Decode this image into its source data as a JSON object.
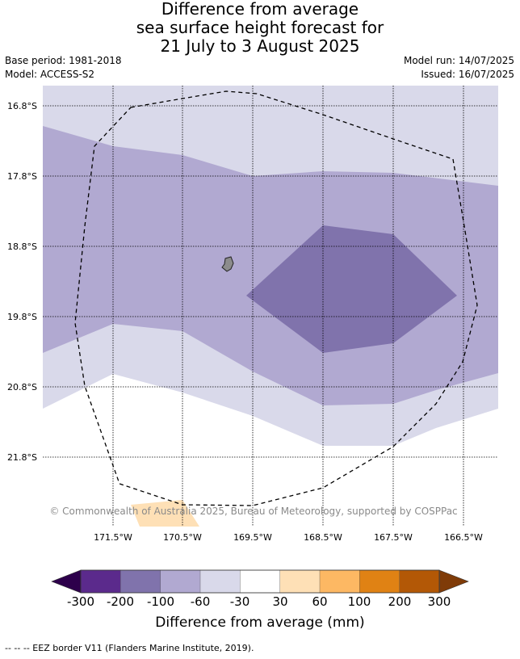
{
  "title_lines": [
    "Difference from average",
    "sea surface height forecast for",
    "21 July to 3 August 2025"
  ],
  "meta": {
    "base_period": "Base period: 1981-2018",
    "model": "Model: ACCESS-S2",
    "model_run": "Model run: 14/07/2025",
    "issued": "Issued: 16/07/2025"
  },
  "map": {
    "lat_labels": [
      "16.8°S",
      "17.8°S",
      "18.8°S",
      "19.8°S",
      "20.8°S",
      "21.8°S"
    ],
    "lon_labels": [
      "171.5°W",
      "170.5°W",
      "169.5°W",
      "168.5°W",
      "167.5°W",
      "166.5°W"
    ],
    "copyright": "© Commonwealth of Australia 2025, Bureau of Meteorology, supported by COSPPac",
    "island_color": "#8c8c8c",
    "eez_line_style": "dashed black"
  },
  "colorbar": {
    "title": "Difference from average (mm)",
    "tick_labels": [
      "-300",
      "-200",
      "-100",
      "-60",
      "-30",
      "30",
      "60",
      "100",
      "200",
      "300"
    ],
    "colors": [
      "#5b2a8c",
      "#8073ac",
      "#b1a9d1",
      "#d9d9ea",
      "#ffffff",
      "#fee0b6",
      "#fdb863",
      "#e08214",
      "#b35806"
    ],
    "low_extend_color": "#2d004b",
    "high_extend_color": "#7f3b08"
  },
  "footer": "--  --  -- EEZ border V11 (Flanders Marine Institute, 2019)."
}
